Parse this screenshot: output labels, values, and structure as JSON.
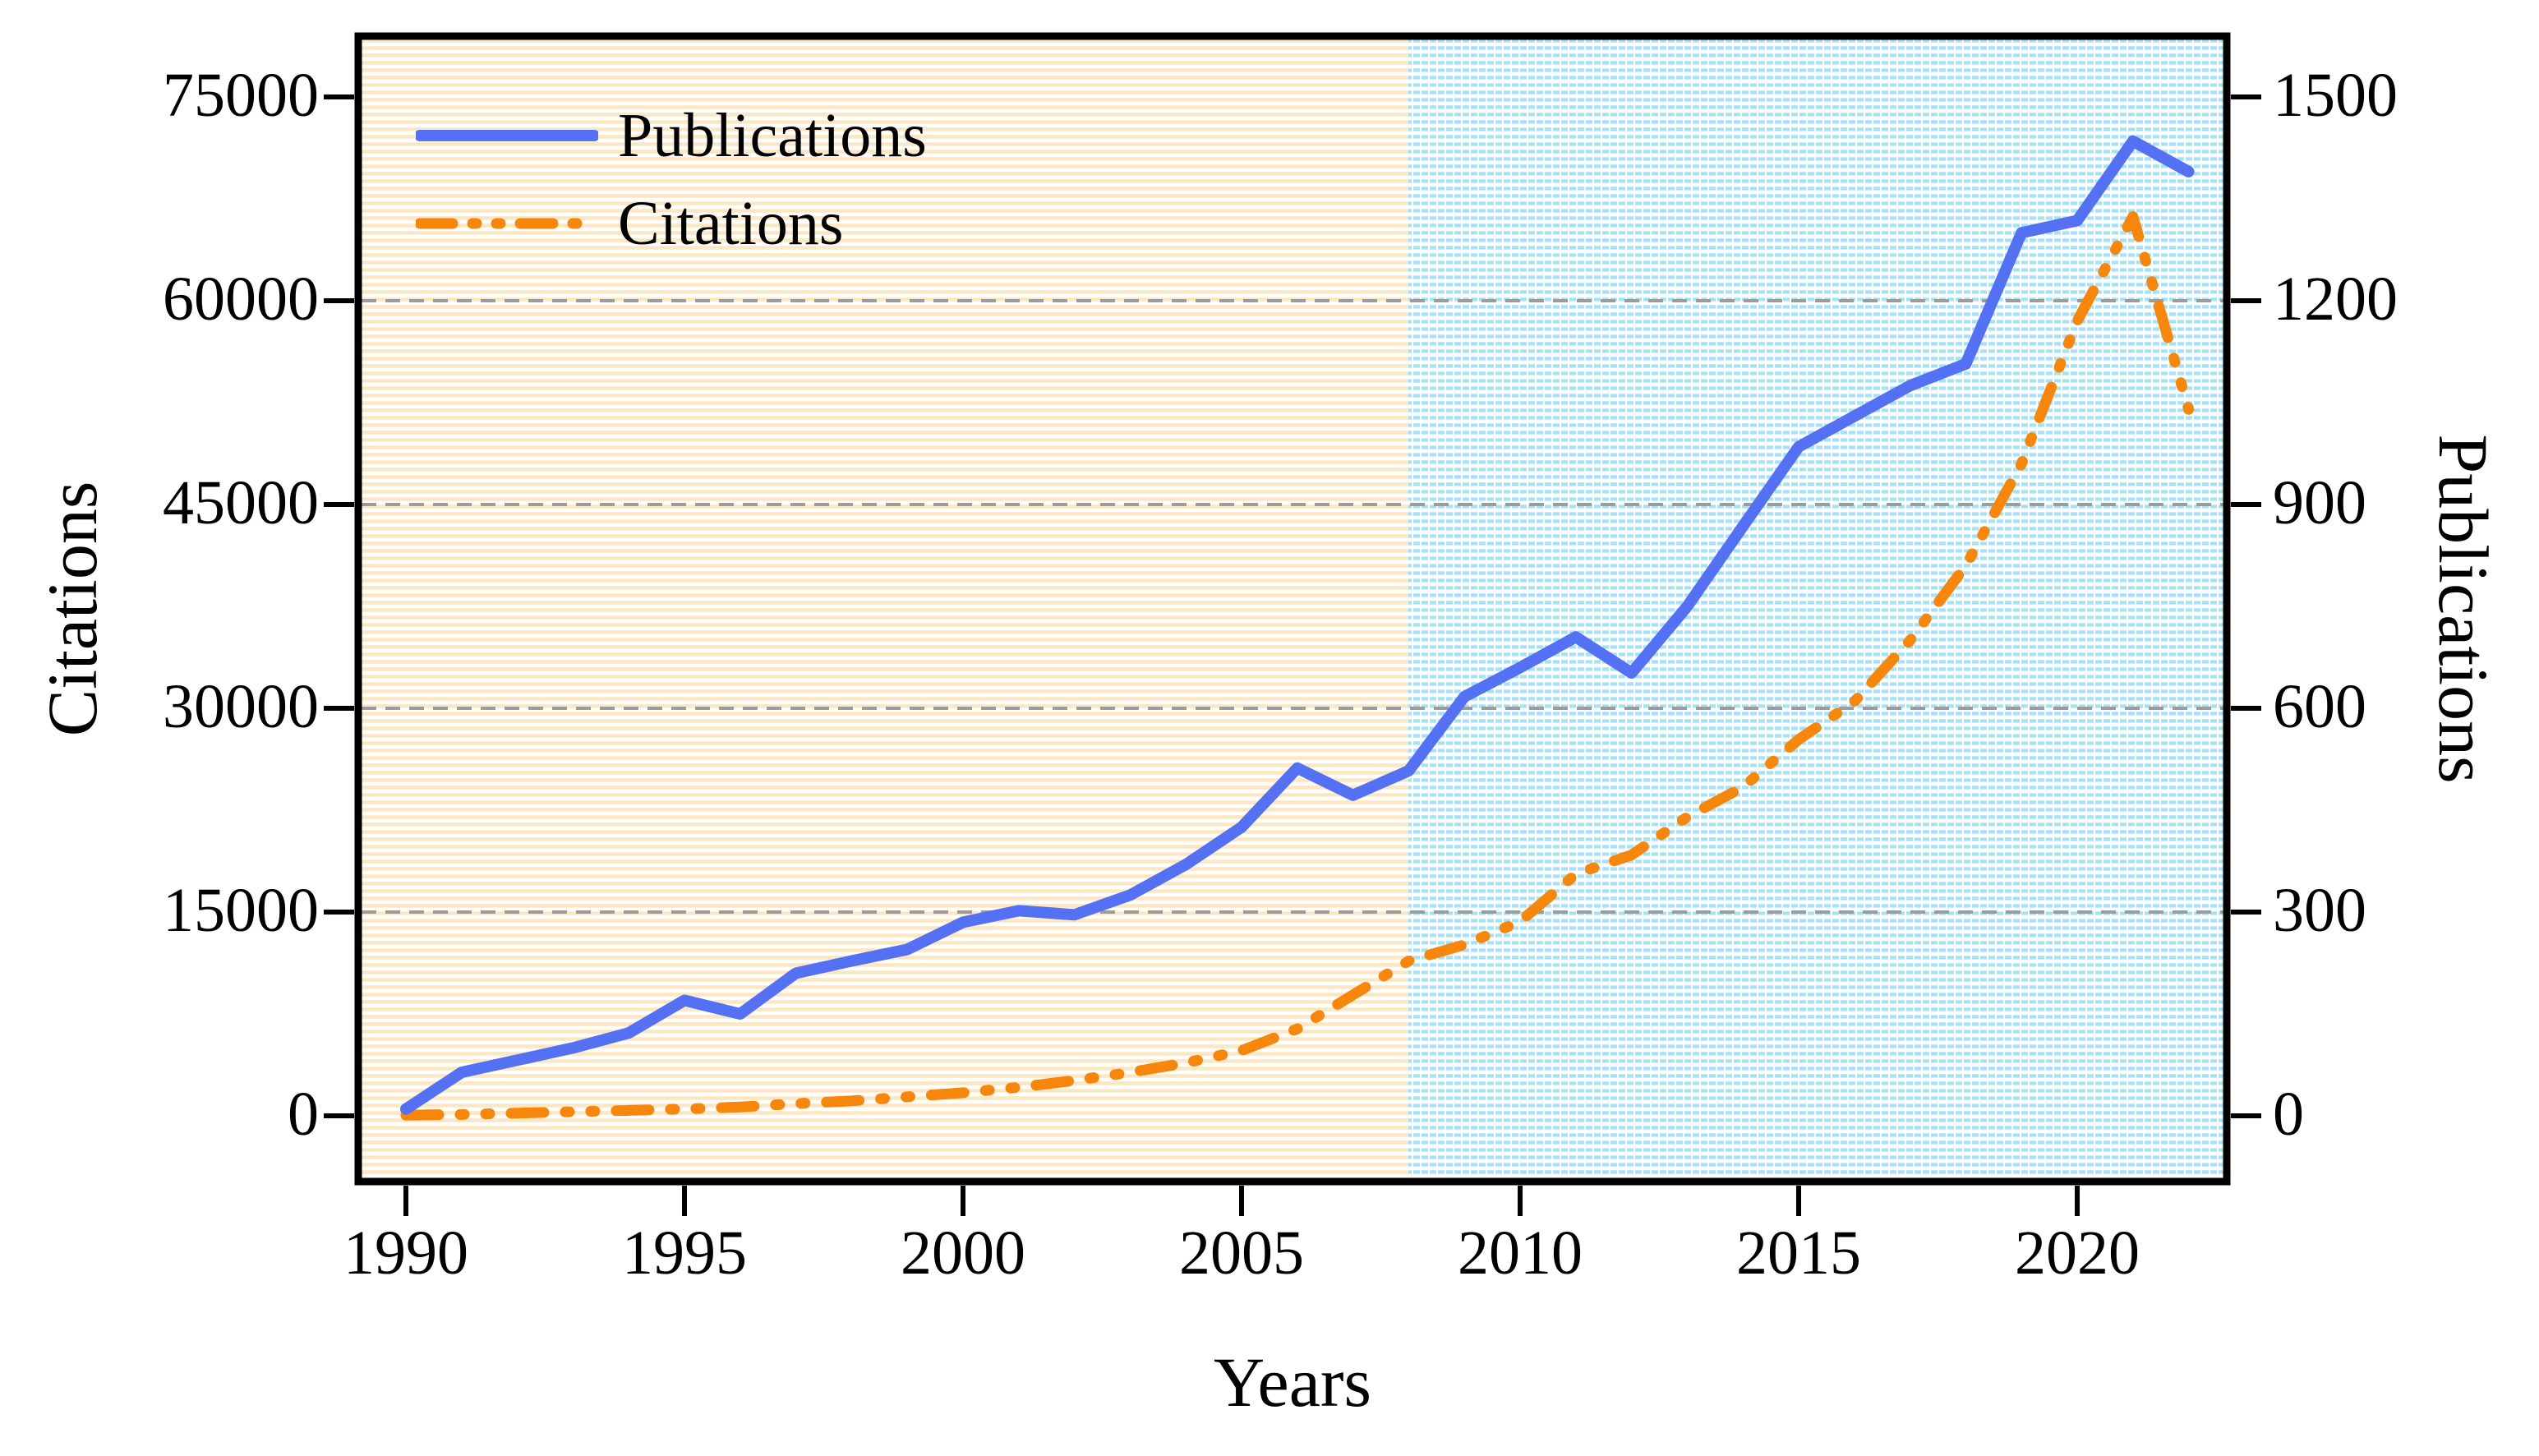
{
  "figure": {
    "kind": "dual-axis line chart",
    "background_left_region": "white with horizontal cream stripes (1990-2008)",
    "background_right_region": "white with light-blue dashed grid (2008-2023)",
    "colors": {
      "publications_line": "#5571F3",
      "citations_line": "#F7860D",
      "gridline": "#9C9C9C",
      "left_region_stripe": "#FCE7C2",
      "right_region_tile": "#A5E1F7",
      "spine": "#000000"
    }
  },
  "legend": {
    "items": [
      {
        "label": "Publications",
        "style": "solid",
        "color": "#5571F3"
      },
      {
        "label": "Citations",
        "style": "dash-dot-dot",
        "color": "#F7860D"
      }
    ]
  },
  "chart_data": {
    "type": "line",
    "xlabel": "Years",
    "ylabel_left": "Citations",
    "ylabel_right": "Publications",
    "x_ticks": [
      1990,
      1995,
      2000,
      2005,
      2010,
      2015,
      2020
    ],
    "y_ticks_left": [
      0,
      15000,
      30000,
      45000,
      60000,
      75000
    ],
    "y_ticks_right": [
      0,
      300,
      600,
      900,
      1200,
      1500
    ],
    "ylim_left": [
      0,
      75000
    ],
    "ylim_right": [
      0,
      1500
    ],
    "grid": "horizontal dashed at 15000, 30000, 45000, 60000",
    "legend_position": "upper left",
    "background_split_year": 2008,
    "x": [
      1990,
      1991,
      1992,
      1993,
      1994,
      1995,
      1996,
      1997,
      1998,
      1999,
      2000,
      2001,
      2002,
      2003,
      2004,
      2005,
      2006,
      2007,
      2008,
      2009,
      2010,
      2011,
      2012,
      2013,
      2014,
      2015,
      2016,
      2017,
      2018,
      2019,
      2020,
      2021,
      2022
    ],
    "series": [
      {
        "name": "Publications",
        "axis": "right",
        "color": "#5571F3",
        "line_style": "solid",
        "values": [
          10,
          64,
          82,
          100,
          122,
          170,
          150,
          210,
          228,
          245,
          285,
          302,
          296,
          325,
          370,
          425,
          512,
          472,
          508,
          617,
          660,
          705,
          652,
          750,
          868,
          985,
          1030,
          1075,
          1107,
          1300,
          1318,
          1435,
          1390
        ]
      },
      {
        "name": "Citations",
        "axis": "left",
        "color": "#F7860D",
        "line_style": "dash-dot-dot",
        "values": [
          50,
          100,
          200,
          300,
          400,
          500,
          650,
          900,
          1100,
          1400,
          1700,
          2100,
          2600,
          3200,
          3900,
          4800,
          6400,
          8900,
          11400,
          12600,
          14300,
          17800,
          19200,
          22000,
          24200,
          27700,
          30500,
          35000,
          40500,
          48000,
          58500,
          66200,
          52000
        ]
      }
    ]
  }
}
